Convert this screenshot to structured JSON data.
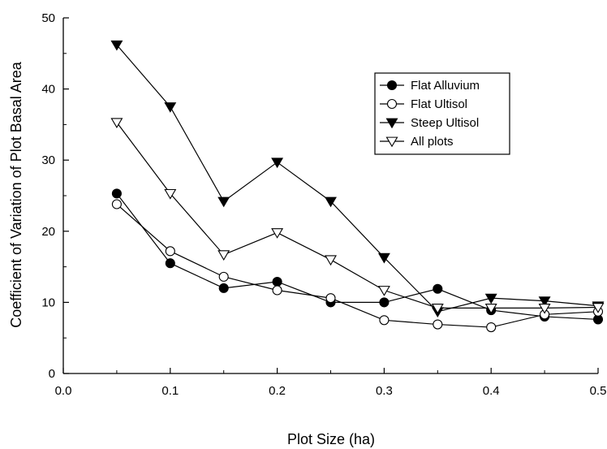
{
  "chart_data": {
    "type": "line",
    "title": "",
    "xlabel": "Plot Size (ha)",
    "ylabel": "Coefficient of Variation of Plot Basal Area",
    "xlim": [
      0.0,
      0.5
    ],
    "ylim": [
      0,
      50
    ],
    "xticks": [
      "0.0",
      "0.1",
      "0.2",
      "0.3",
      "0.4",
      "0.5"
    ],
    "yticks": [
      "0",
      "10",
      "20",
      "30",
      "40",
      "50"
    ],
    "grid": false,
    "legend_position": "top-right",
    "x": [
      0.05,
      0.1,
      0.15,
      0.2,
      0.25,
      0.3,
      0.35,
      0.4,
      0.45,
      0.5
    ],
    "series": [
      {
        "name": "Flat Alluvium",
        "marker": "circle-filled",
        "values": [
          25.3,
          15.5,
          12.0,
          12.9,
          10.0,
          10.0,
          11.9,
          8.9,
          8.0,
          7.6
        ]
      },
      {
        "name": "Flat Ultisol",
        "marker": "circle-open",
        "values": [
          23.8,
          17.2,
          13.6,
          11.7,
          10.6,
          7.5,
          6.9,
          6.5,
          8.3,
          8.7
        ]
      },
      {
        "name": "Steep Ultisol",
        "marker": "triangle-down-filled",
        "values": [
          46.2,
          37.5,
          24.2,
          29.7,
          24.2,
          16.3,
          8.7,
          10.6,
          10.2,
          9.5
        ]
      },
      {
        "name": "All plots",
        "marker": "triangle-down-open",
        "values": [
          35.3,
          25.3,
          16.7,
          19.8,
          16.0,
          11.7,
          9.2,
          9.2,
          9.2,
          9.3
        ]
      }
    ]
  }
}
